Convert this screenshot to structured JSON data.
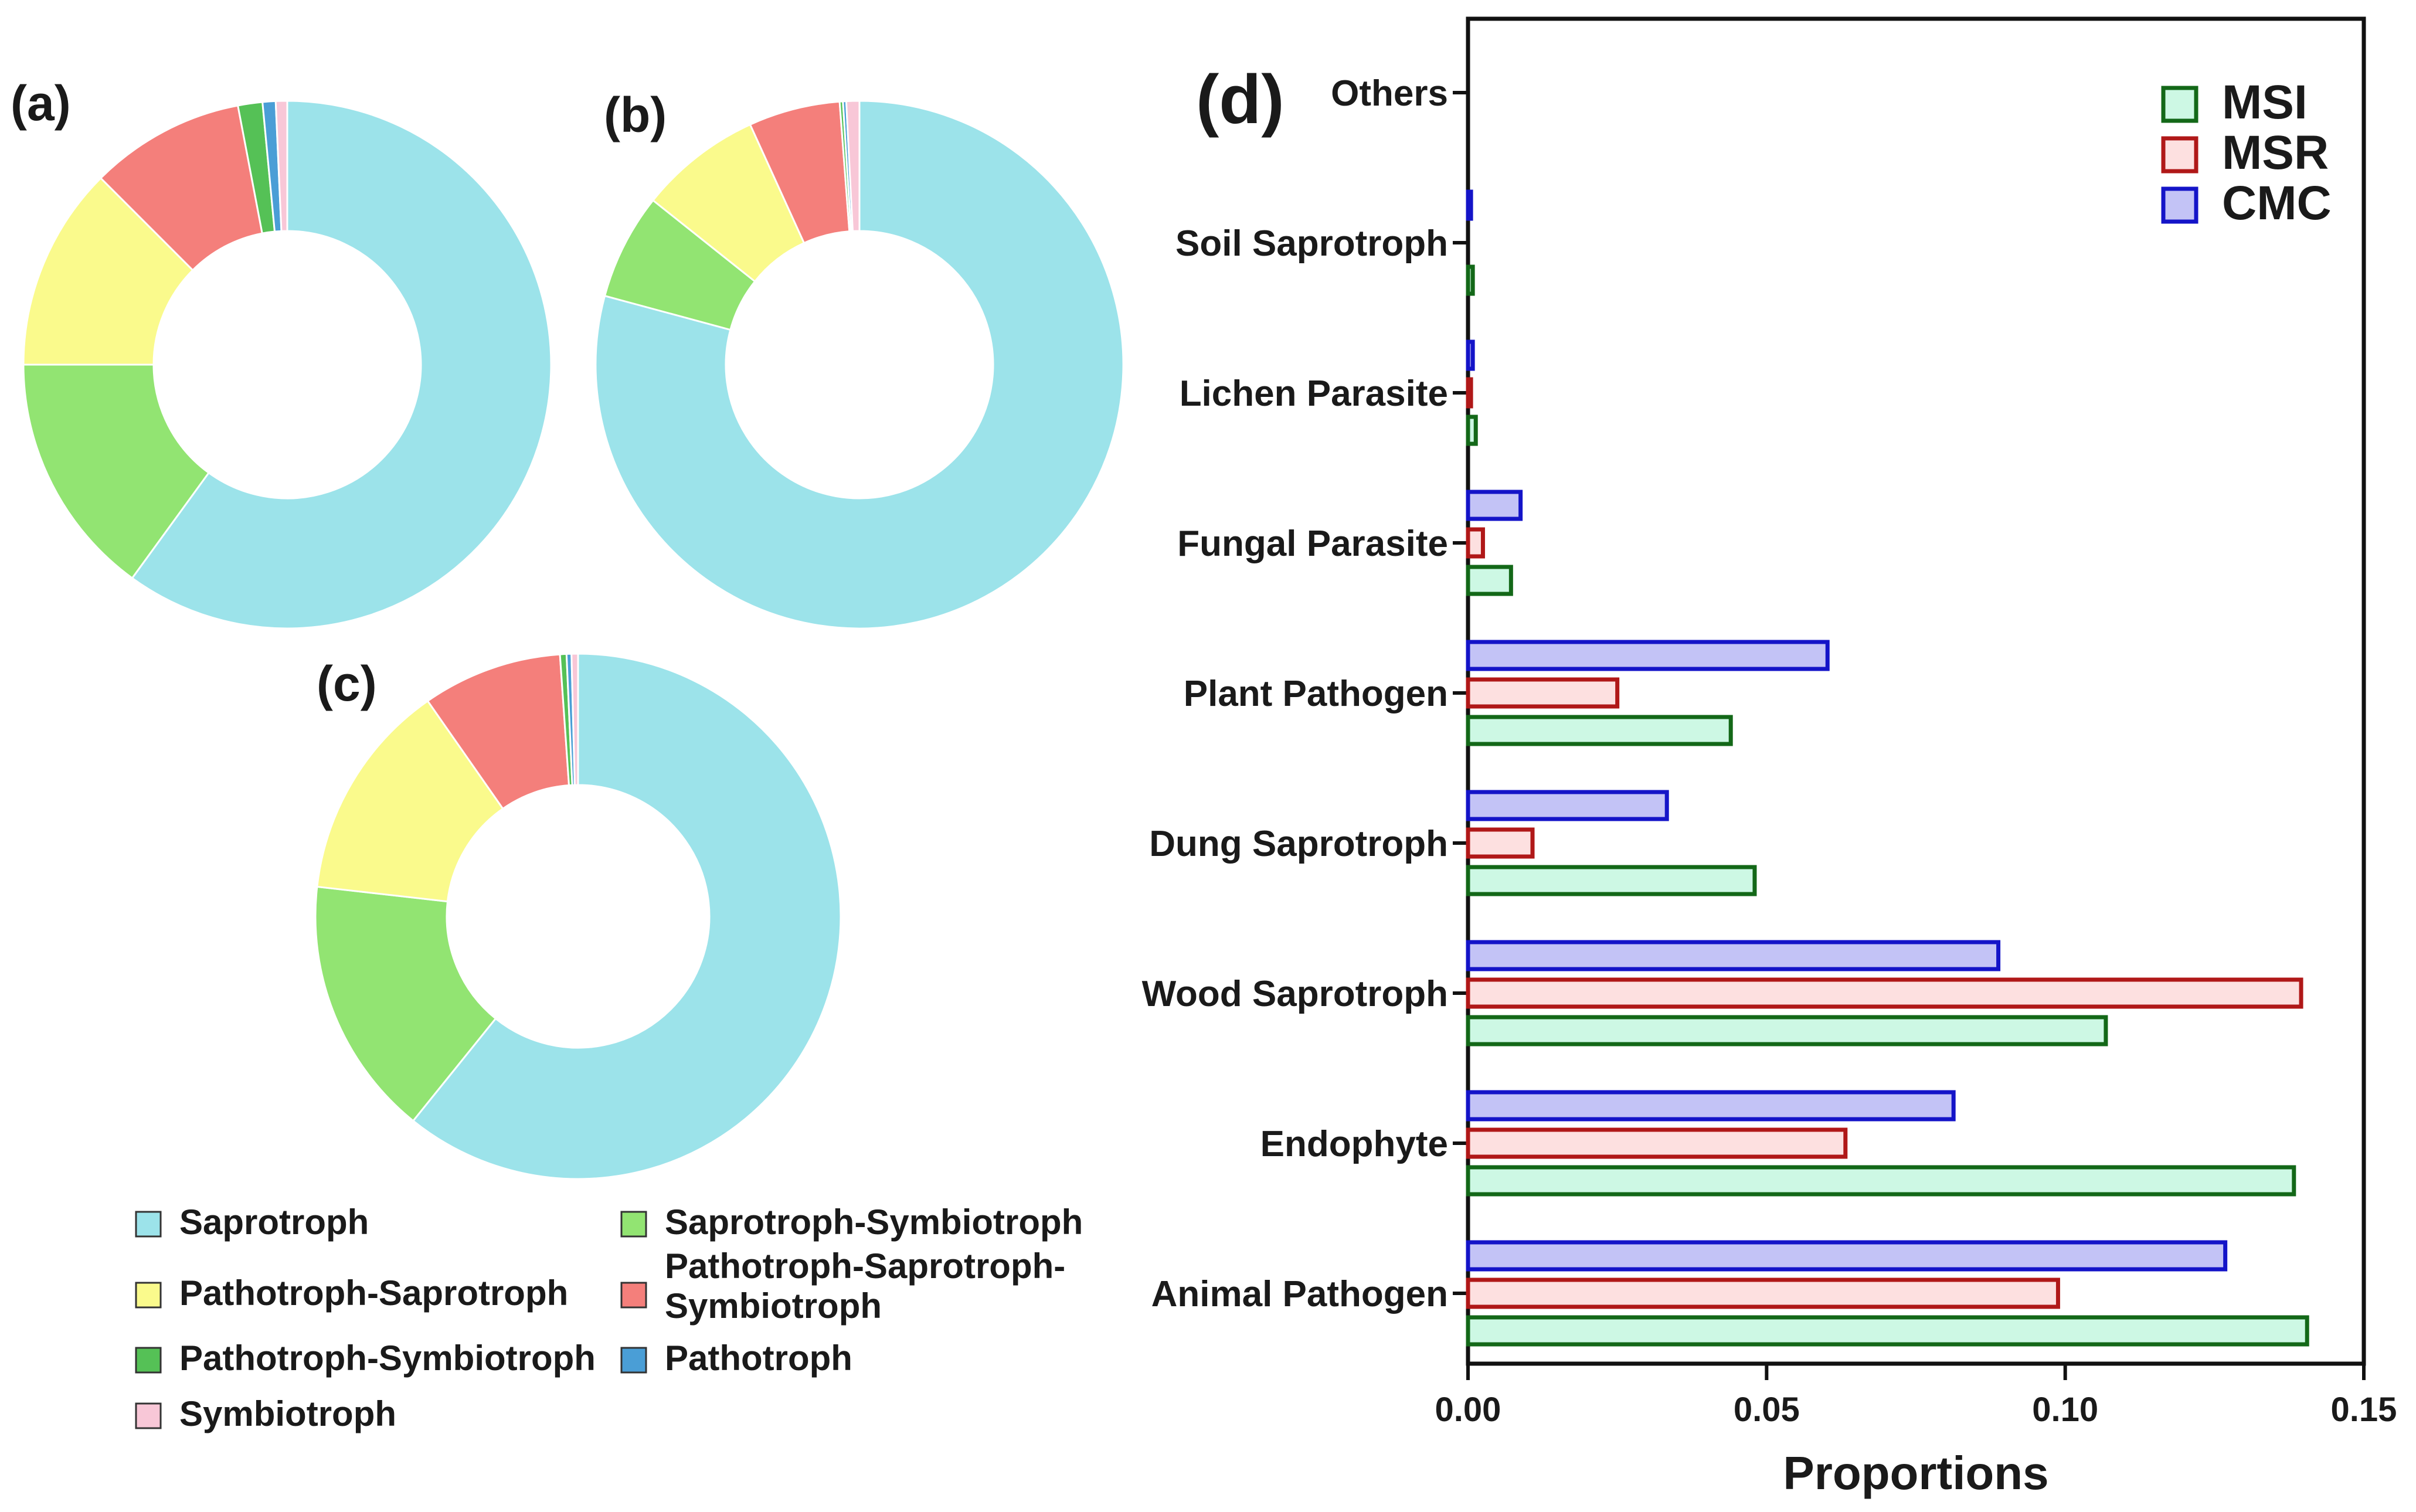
{
  "panels": {
    "a": "(a)",
    "b": "(b)",
    "c": "(c)",
    "d": "(d)"
  },
  "donut_legend": [
    {
      "label": "Saprotroph",
      "color": "#9ce3ea"
    },
    {
      "label": "Saprotroph-Symbiotroph",
      "color": "#92e472"
    },
    {
      "label": "Pathotroph-Saprotroph",
      "color": "#fafa8c"
    },
    {
      "label": "Pathotroph-Saprotroph-",
      "label2": "Symbiotroph",
      "color": "#f47f7b"
    },
    {
      "label": "Pathotroph-Symbiotroph",
      "color": "#55c156"
    },
    {
      "label": "Pathotroph",
      "color": "#4a9ed6"
    },
    {
      "label": "Symbiotroph",
      "color": "#f8c7d7"
    }
  ],
  "chart_data": [
    {
      "type": "pie",
      "panel": "(a)",
      "donut": true,
      "slice_order": [
        "Saprotroph",
        "Saprotroph-Symbiotroph",
        "Pathotroph-Saprotroph",
        "Pathotroph-Saprotroph-Symbiotroph",
        "Pathotroph-Symbiotroph",
        "Pathotroph",
        "Symbiotroph"
      ],
      "values": [
        60.0,
        15.0,
        12.5,
        9.5,
        1.5,
        0.8,
        0.7
      ]
    },
    {
      "type": "pie",
      "panel": "(b)",
      "donut": true,
      "slice_order": [
        "Saprotroph",
        "Saprotroph-Symbiotroph",
        "Pathotroph-Saprotroph",
        "Pathotroph-Saprotroph-Symbiotroph",
        "Pathotroph-Symbiotroph",
        "Pathotroph",
        "Symbiotroph"
      ],
      "values": [
        79.2,
        6.5,
        7.5,
        5.6,
        0.2,
        0.2,
        0.8
      ]
    },
    {
      "type": "pie",
      "panel": "(c)",
      "donut": true,
      "slice_order": [
        "Saprotroph",
        "Saprotroph-Symbiotroph",
        "Pathotroph-Saprotroph",
        "Pathotroph-Saprotroph-Symbiotroph",
        "Pathotroph-Symbiotroph",
        "Pathotroph",
        "Symbiotroph"
      ],
      "values": [
        60.8,
        16.0,
        13.5,
        8.6,
        0.4,
        0.3,
        0.4
      ]
    },
    {
      "type": "bar",
      "orientation": "horizontal",
      "panel": "(d)",
      "categories": [
        "Others",
        "Soil Saprotroph",
        "Lichen Parasite",
        "Fungal Parasite",
        "Plant Pathogen",
        "Dung Saprotroph",
        "Wood Saprotroph",
        "Endophyte",
        "Animal Pathogen"
      ],
      "series": [
        {
          "name": "CMC",
          "values": [
            0.0,
            0.0005,
            0.0008,
            0.0088,
            0.0602,
            0.0333,
            0.0888,
            0.0813,
            0.1268
          ],
          "fill": "#c3c3f6",
          "stroke": "#1414c8"
        },
        {
          "name": "MSR",
          "values": [
            0.0,
            0.0,
            0.0005,
            0.0025,
            0.025,
            0.0108,
            0.1395,
            0.0632,
            0.0988
          ],
          "fill": "#fde0e0",
          "stroke": "#b01818"
        },
        {
          "name": "MSI",
          "values": [
            0.0,
            0.0008,
            0.0013,
            0.0072,
            0.044,
            0.048,
            0.1068,
            0.1383,
            0.1405
          ],
          "fill": "#cdf8e4",
          "stroke": "#136818"
        }
      ],
      "legend_order": [
        "MSI",
        "MSR",
        "CMC"
      ],
      "legend_position": "top-right",
      "xlim": [
        0,
        0.15
      ],
      "xticks": [
        "0.00",
        "0.05",
        "0.10",
        "0.15"
      ],
      "xlabel": "Proportions",
      "ylabel": "",
      "grid": false
    }
  ]
}
